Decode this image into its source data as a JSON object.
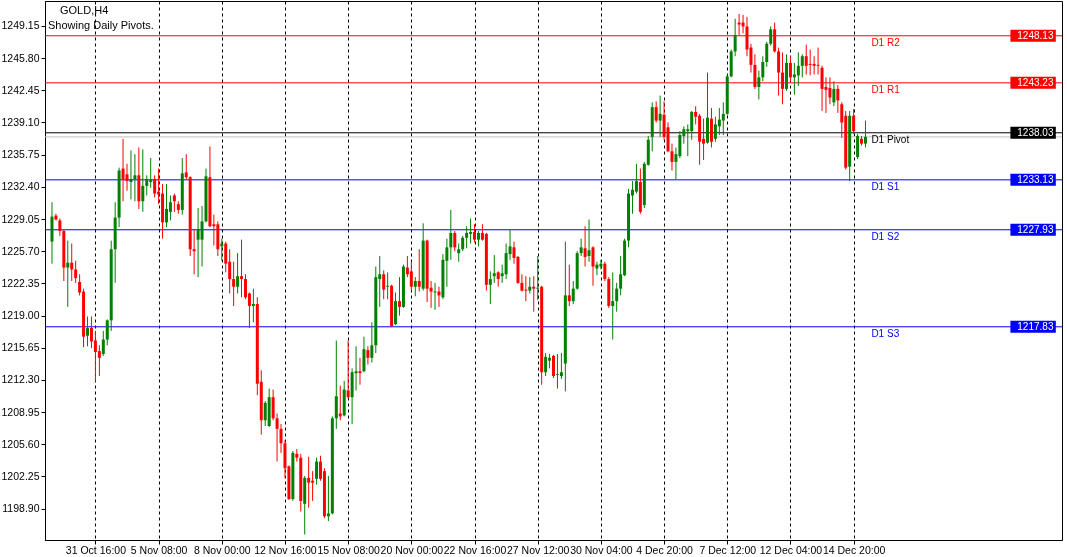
{
  "chart_data": {
    "type": "candlestick",
    "title": "GOLD,H4",
    "subtitle": "Showing Daily Pivots.",
    "categories": [
      null,
      null,
      null,
      null,
      null,
      null,
      null,
      null,
      null,
      null,
      null,
      "31 Oct 16:00",
      null,
      null,
      null,
      null,
      null,
      null,
      null,
      null,
      null,
      null,
      null,
      null,
      null,
      null,
      null,
      "5 Nov 08:00",
      null,
      null,
      null,
      null,
      null,
      null,
      null,
      null,
      null,
      null,
      null,
      null,
      null,
      null,
      null,
      "8 Nov 00:00",
      null,
      null,
      null,
      null,
      null,
      null,
      null,
      null,
      null,
      null,
      null,
      null,
      null,
      null,
      null,
      "12 Nov 16:00",
      null,
      null,
      null,
      null,
      null,
      null,
      null,
      null,
      null,
      null,
      null,
      null,
      null,
      null,
      null,
      "15 Nov 08:00",
      null,
      null,
      null,
      null,
      null,
      null,
      null,
      null,
      null,
      null,
      null,
      null,
      null,
      null,
      null,
      "20 Nov 00:00",
      null,
      null,
      null,
      null,
      null,
      null,
      null,
      null,
      null,
      null,
      null,
      null,
      null,
      null,
      null,
      "22 Nov 16:00",
      null,
      null,
      null,
      null,
      null,
      null,
      null,
      null,
      null,
      null,
      null,
      null,
      null,
      null,
      null,
      "27 Nov 12:00",
      null,
      null,
      null,
      null,
      null,
      null,
      null,
      null,
      null,
      null,
      null,
      null,
      null,
      null,
      null,
      "30 Nov 04:00",
      null,
      null,
      null,
      null,
      null,
      null,
      null,
      null,
      null,
      null,
      null,
      null,
      null,
      null,
      null,
      "4 Dec 20:00",
      null,
      null,
      null,
      null,
      null,
      null,
      null,
      null,
      null,
      null,
      null,
      null,
      null,
      null,
      null,
      "7 Dec 12:00",
      null,
      null,
      null,
      null,
      null,
      null,
      null,
      null,
      null,
      null,
      null,
      null,
      null,
      null,
      null,
      "12 Dec 04:00",
      null,
      null,
      null,
      null,
      null,
      null,
      null,
      null,
      null,
      null,
      null,
      null,
      null,
      null,
      null,
      "14 Dec 20:00",
      null,
      null,
      null
    ],
    "ohlc": [
      [
        1226.7,
        1230.8,
        1224.4,
        1229.3
      ],
      [
        1229.4,
        1229.6,
        1228.9,
        1229.0
      ],
      [
        1228.9,
        1229.1,
        1227.3,
        1227.8
      ],
      [
        1227.8,
        1227.9,
        1222.6,
        1224.0
      ],
      [
        1224.0,
        1226.8,
        1219.9,
        1224.5
      ],
      [
        1224.5,
        1226.5,
        1222.6,
        1223.8
      ],
      [
        1223.8,
        1224.7,
        1222.4,
        1222.9
      ],
      [
        1222.5,
        1223.3,
        1221.1,
        1221.4
      ],
      [
        1221.5,
        1221.8,
        1215.7,
        1216.8
      ],
      [
        1216.9,
        1218.9,
        1215.8,
        1217.7
      ],
      [
        1217.7,
        1218.9,
        1215.6,
        1216.3
      ],
      [
        1216.4,
        1217.4,
        1212.1,
        1215.2
      ],
      [
        1215.3,
        1215.9,
        1212.7,
        1214.6
      ],
      [
        1215.0,
        1217.4,
        1214.8,
        1216.5
      ],
      [
        1216.5,
        1218.6,
        1215.9,
        1218.5
      ],
      [
        1218.5,
        1226.8,
        1217.4,
        1225.9
      ],
      [
        1225.9,
        1230.8,
        1222.4,
        1229.2
      ],
      [
        1229.2,
        1234.4,
        1228.2,
        1234.1
      ],
      [
        1234.3,
        1237.4,
        1230.9,
        1233.2
      ],
      [
        1233.7,
        1234.8,
        1232.0,
        1233.0
      ],
      [
        1232.9,
        1236.2,
        1231.1,
        1233.2
      ],
      [
        1233.2,
        1235.8,
        1230.9,
        1233.6
      ],
      [
        1233.6,
        1236.5,
        1230.1,
        1230.9
      ],
      [
        1230.9,
        1236.3,
        1229.8,
        1232.5
      ],
      [
        1232.5,
        1233.6,
        1231.5,
        1233.2
      ],
      [
        1232.9,
        1235.4,
        1232.3,
        1233.1
      ],
      [
        1233.2,
        1233.6,
        1231.3,
        1231.7
      ],
      [
        1231.9,
        1234.3,
        1230.6,
        1231.6
      ],
      [
        1231.7,
        1232.7,
        1227.0,
        1228.7
      ],
      [
        1228.7,
        1232.7,
        1228.2,
        1230.1
      ],
      [
        1229.8,
        1231.5,
        1228.9,
        1230.8
      ],
      [
        1231.5,
        1231.7,
        1229.8,
        1230.9
      ],
      [
        1230.6,
        1230.9,
        1229.6,
        1230.0
      ],
      [
        1230.0,
        1235.4,
        1229.5,
        1233.8
      ],
      [
        1233.9,
        1235.8,
        1233.2,
        1233.4
      ],
      [
        1233.4,
        1233.5,
        1225.2,
        1225.9
      ],
      [
        1225.9,
        1228.0,
        1223.3,
        1225.7
      ],
      [
        1226.9,
        1230.2,
        1223.0,
        1228.0
      ],
      [
        1226.9,
        1230.4,
        1224.1,
        1228.8
      ],
      [
        1228.8,
        1234.3,
        1228.7,
        1233.5
      ],
      [
        1233.4,
        1236.6,
        1228.2,
        1228.3
      ],
      [
        1228.5,
        1229.5,
        1226.3,
        1228.3
      ],
      [
        1228.5,
        1228.8,
        1225.2,
        1225.9
      ],
      [
        1226.2,
        1227.0,
        1224.7,
        1226.5
      ],
      [
        1226.5,
        1226.7,
        1223.5,
        1224.4
      ],
      [
        1224.6,
        1225.9,
        1221.3,
        1222.8
      ],
      [
        1222.8,
        1224.6,
        1220.0,
        1222.0
      ],
      [
        1222.0,
        1225.5,
        1221.3,
        1223.1
      ],
      [
        1223.1,
        1226.9,
        1220.9,
        1222.8
      ],
      [
        1222.8,
        1223.3,
        1220.7,
        1220.9
      ],
      [
        1221.3,
        1221.4,
        1217.7,
        1220.0
      ],
      [
        1220.0,
        1221.8,
        1218.3,
        1220.2
      ],
      [
        1220.2,
        1220.9,
        1210.7,
        1211.9
      ],
      [
        1212.1,
        1213.3,
        1206.6,
        1208.1
      ],
      [
        1208.1,
        1210.1,
        1207.5,
        1209.9
      ],
      [
        1207.5,
        1211.4,
        1207.4,
        1210.5
      ],
      [
        1210.5,
        1211.3,
        1208.1,
        1208.3
      ],
      [
        1208.3,
        1208.8,
        1203.8,
        1207.2
      ],
      [
        1207.2,
        1207.7,
        1204.7,
        1205.7
      ],
      [
        1205.7,
        1206.0,
        1202.1,
        1203.1
      ],
      [
        1203.3,
        1203.4,
        1199.8,
        1199.9
      ],
      [
        1199.9,
        1204.9,
        1199.7,
        1204.7
      ],
      [
        1204.6,
        1205.1,
        1203.8,
        1204.2
      ],
      [
        1204.2,
        1204.6,
        1198.6,
        1199.7
      ],
      [
        1199.4,
        1202.3,
        1196.2,
        1202.1
      ],
      [
        1202.1,
        1204.3,
        1199.0,
        1201.6
      ],
      [
        1201.8,
        1202.8,
        1199.7,
        1201.6
      ],
      [
        1202.0,
        1204.2,
        1201.4,
        1203.8
      ],
      [
        1203.8,
        1204.4,
        1201.8,
        1202.0
      ],
      [
        1202.8,
        1203.1,
        1197.9,
        1198.1
      ],
      [
        1198.1,
        1202.3,
        1197.6,
        1198.4
      ],
      [
        1198.4,
        1208.5,
        1198.3,
        1208.3
      ],
      [
        1208.3,
        1216.4,
        1207.2,
        1210.6
      ],
      [
        1208.8,
        1211.7,
        1208.1,
        1208.5
      ],
      [
        1208.6,
        1212.2,
        1208.5,
        1211.3
      ],
      [
        1211.2,
        1216.4,
        1210.4,
        1210.5
      ],
      [
        1210.5,
        1213.5,
        1207.7,
        1213.1
      ],
      [
        1213.0,
        1215.8,
        1211.2,
        1213.2
      ],
      [
        1213.2,
        1214.6,
        1211.8,
        1213.0
      ],
      [
        1213.2,
        1216.8,
        1213.1,
        1215.5
      ],
      [
        1215.4,
        1215.8,
        1213.9,
        1214.6
      ],
      [
        1214.6,
        1218.3,
        1214.1,
        1215.9
      ],
      [
        1215.9,
        1224.1,
        1215.1,
        1223.0
      ],
      [
        1222.8,
        1225.2,
        1219.9,
        1223.3
      ],
      [
        1223.3,
        1223.7,
        1220.7,
        1221.7
      ],
      [
        1222.0,
        1223.5,
        1220.7,
        1222.1
      ],
      [
        1222.1,
        1222.2,
        1217.8,
        1217.9
      ],
      [
        1218.1,
        1221.4,
        1218.0,
        1220.5
      ],
      [
        1220.5,
        1223.0,
        1219.0,
        1219.9
      ],
      [
        1219.9,
        1224.3,
        1219.8,
        1224.1
      ],
      [
        1224.0,
        1225.2,
        1223.0,
        1223.3
      ],
      [
        1223.6,
        1224.6,
        1221.6,
        1222.0
      ],
      [
        1222.0,
        1223.0,
        1221.0,
        1222.6
      ],
      [
        1222.6,
        1225.9,
        1221.5,
        1222.0
      ],
      [
        1221.8,
        1228.6,
        1221.6,
        1226.8
      ],
      [
        1226.8,
        1226.9,
        1220.4,
        1221.8
      ],
      [
        1221.9,
        1222.6,
        1219.8,
        1221.5
      ],
      [
        1221.4,
        1222.4,
        1219.6,
        1221.5
      ],
      [
        1221.5,
        1222.0,
        1219.9,
        1221.1
      ],
      [
        1220.9,
        1225.4,
        1220.7,
        1224.8
      ],
      [
        1224.7,
        1227.0,
        1222.0,
        1226.1
      ],
      [
        1226.1,
        1230.0,
        1224.8,
        1227.6
      ],
      [
        1227.6,
        1227.8,
        1225.7,
        1226.1
      ],
      [
        1225.5,
        1226.5,
        1224.6,
        1225.9
      ],
      [
        1225.9,
        1227.3,
        1225.7,
        1227.1
      ],
      [
        1227.1,
        1228.3,
        1226.0,
        1227.6
      ],
      [
        1227.5,
        1229.1,
        1226.5,
        1227.7
      ],
      [
        1227.7,
        1228.5,
        1226.6,
        1226.9
      ],
      [
        1226.9,
        1227.8,
        1226.2,
        1227.6
      ],
      [
        1227.6,
        1228.5,
        1226.8,
        1226.9
      ],
      [
        1227.5,
        1227.6,
        1221.6,
        1222.2
      ],
      [
        1222.2,
        1223.6,
        1220.2,
        1222.8
      ],
      [
        1223.1,
        1225.3,
        1222.4,
        1223.4
      ],
      [
        1223.5,
        1223.6,
        1222.0,
        1222.8
      ],
      [
        1223.1,
        1224.3,
        1222.4,
        1223.4
      ],
      [
        1223.3,
        1226.5,
        1222.8,
        1225.5
      ],
      [
        1225.4,
        1227.9,
        1224.8,
        1226.2
      ],
      [
        1226.1,
        1226.7,
        1224.4,
        1225.0
      ],
      [
        1225.1,
        1225.2,
        1222.3,
        1222.4
      ],
      [
        1222.4,
        1223.3,
        1221.5,
        1221.6
      ],
      [
        1221.7,
        1223.1,
        1220.5,
        1221.6
      ],
      [
        1221.6,
        1223.0,
        1221.3,
        1222.0
      ],
      [
        1222.0,
        1223.1,
        1219.4,
        1221.8
      ],
      [
        1221.8,
        1225.2,
        1220.6,
        1221.9
      ],
      [
        1222.0,
        1222.1,
        1211.8,
        1213.1
      ],
      [
        1213.1,
        1215.1,
        1212.7,
        1214.7
      ],
      [
        1214.3,
        1215.0,
        1213.5,
        1214.6
      ],
      [
        1214.8,
        1214.9,
        1212.5,
        1212.7
      ],
      [
        1212.8,
        1215.0,
        1211.4,
        1212.9
      ],
      [
        1212.7,
        1215.1,
        1212.4,
        1213.1
      ],
      [
        1214.0,
        1226.7,
        1211.1,
        1221.1
      ],
      [
        1221.1,
        1224.3,
        1220.0,
        1220.5
      ],
      [
        1220.5,
        1222.6,
        1220.2,
        1221.8
      ],
      [
        1221.8,
        1225.7,
        1221.7,
        1225.5
      ],
      [
        1225.5,
        1227.0,
        1225.2,
        1226.1
      ],
      [
        1226.0,
        1228.3,
        1224.1,
        1225.1
      ],
      [
        1225.2,
        1229.0,
        1224.6,
        1225.8
      ],
      [
        1226.1,
        1226.2,
        1222.1,
        1224.1
      ],
      [
        1223.9,
        1224.6,
        1223.2,
        1224.3
      ],
      [
        1224.1,
        1224.8,
        1223.8,
        1224.4
      ],
      [
        1224.4,
        1224.6,
        1222.6,
        1222.8
      ],
      [
        1222.8,
        1223.0,
        1219.8,
        1220.0
      ],
      [
        1220.0,
        1223.5,
        1216.5,
        1220.5
      ],
      [
        1220.5,
        1222.4,
        1219.4,
        1221.8
      ],
      [
        1221.8,
        1225.2,
        1221.1,
        1223.3
      ],
      [
        1223.2,
        1227.0,
        1223.1,
        1226.8
      ],
      [
        1226.8,
        1232.2,
        1226.1,
        1231.7
      ],
      [
        1231.5,
        1233.0,
        1229.6,
        1232.1
      ],
      [
        1231.9,
        1234.8,
        1231.7,
        1233.0
      ],
      [
        1232.9,
        1234.3,
        1229.6,
        1229.8
      ],
      [
        1230.5,
        1235.0,
        1230.2,
        1234.8
      ],
      [
        1234.7,
        1237.7,
        1234.6,
        1237.3
      ],
      [
        1237.6,
        1241.2,
        1236.1,
        1240.7
      ],
      [
        1240.7,
        1241.3,
        1239.1,
        1239.3
      ],
      [
        1239.3,
        1241.9,
        1237.6,
        1240.0
      ],
      [
        1239.9,
        1241.3,
        1237.3,
        1237.6
      ],
      [
        1238.6,
        1239.1,
        1236.0,
        1236.1
      ],
      [
        1236.1,
        1236.9,
        1234.1,
        1235.0
      ],
      [
        1235.0,
        1236.5,
        1233.2,
        1235.8
      ],
      [
        1235.6,
        1238.2,
        1235.4,
        1237.8
      ],
      [
        1237.7,
        1238.7,
        1236.9,
        1238.4
      ],
      [
        1238.2,
        1238.9,
        1235.6,
        1238.4
      ],
      [
        1238.2,
        1240.3,
        1237.3,
        1240.2
      ],
      [
        1240.2,
        1240.8,
        1238.9,
        1239.7
      ],
      [
        1239.8,
        1240.0,
        1234.7,
        1237.1
      ],
      [
        1237.4,
        1239.5,
        1235.2,
        1236.9
      ],
      [
        1237.0,
        1244.3,
        1236.9,
        1239.6
      ],
      [
        1239.5,
        1240.6,
        1236.5,
        1237.1
      ],
      [
        1237.4,
        1239.7,
        1237.1,
        1238.9
      ],
      [
        1238.7,
        1240.6,
        1237.8,
        1239.4
      ],
      [
        1239.3,
        1241.2,
        1237.8,
        1240.0
      ],
      [
        1240.0,
        1244.1,
        1239.9,
        1243.9
      ],
      [
        1243.9,
        1246.7,
        1243.8,
        1246.5
      ],
      [
        1246.5,
        1249.9,
        1246.0,
        1248.2
      ],
      [
        1249.5,
        1250.4,
        1248.2,
        1249.3
      ],
      [
        1249.5,
        1250.3,
        1248.4,
        1249.1
      ],
      [
        1249.1,
        1250.1,
        1246.0,
        1246.7
      ],
      [
        1246.9,
        1247.3,
        1244.3,
        1245.1
      ],
      [
        1245.1,
        1246.2,
        1242.6,
        1242.8
      ],
      [
        1242.8,
        1244.5,
        1241.5,
        1243.8
      ],
      [
        1243.8,
        1246.0,
        1243.4,
        1245.4
      ],
      [
        1245.4,
        1247.5,
        1244.9,
        1247.3
      ],
      [
        1247.3,
        1249.1,
        1247.1,
        1248.8
      ],
      [
        1248.8,
        1249.5,
        1246.4,
        1246.5
      ],
      [
        1246.5,
        1246.9,
        1241.9,
        1244.3
      ],
      [
        1244.3,
        1246.4,
        1241.0,
        1242.6
      ],
      [
        1242.6,
        1246.2,
        1242.4,
        1245.3
      ],
      [
        1245.3,
        1246.0,
        1243.4,
        1243.8
      ],
      [
        1243.8,
        1245.3,
        1242.0,
        1244.1
      ],
      [
        1244.0,
        1246.4,
        1242.9,
        1245.0
      ],
      [
        1245.0,
        1246.2,
        1243.8,
        1246.0
      ],
      [
        1246.0,
        1247.2,
        1244.1,
        1245.0
      ],
      [
        1245.2,
        1246.7,
        1244.0,
        1245.1
      ],
      [
        1245.2,
        1246.0,
        1244.1,
        1245.0
      ],
      [
        1245.1,
        1246.9,
        1244.1,
        1245.0
      ],
      [
        1244.8,
        1245.0,
        1240.3,
        1242.6
      ],
      [
        1242.8,
        1243.8,
        1240.1,
        1242.5
      ],
      [
        1242.7,
        1243.8,
        1241.0,
        1241.7
      ],
      [
        1241.2,
        1243.4,
        1240.8,
        1242.6
      ],
      [
        1242.6,
        1243.0,
        1240.1,
        1241.4
      ],
      [
        1241.0,
        1241.2,
        1237.5,
        1239.1
      ],
      [
        1239.8,
        1240.3,
        1234.2,
        1234.4
      ],
      [
        1234.5,
        1240.3,
        1233.0,
        1239.8
      ],
      [
        1239.8,
        1240.5,
        1237.9,
        1238.2
      ],
      [
        1235.5,
        1237.9,
        1235.3,
        1237.7
      ],
      [
        1237.4,
        1237.7,
        1236.7,
        1236.9
      ],
      [
        1236.9,
        1239.3,
        1236.5,
        1237.6
      ]
    ],
    "colors": [
      "#008000",
      "#ff0000",
      "#ff0000",
      "#ff0000",
      "#008000",
      "#ff0000",
      "#ff0000",
      "#ff0000",
      "#ff0000",
      "#008000",
      "#ff0000",
      "#ff0000",
      "#ff0000",
      "#008000",
      "#008000",
      "#008000",
      "#008000",
      "#008000",
      "#ff0000",
      "#ff0000",
      "#008000",
      "#008000",
      "#ff0000",
      "#008000",
      "#008000",
      "#008000",
      "#ff0000",
      "#ff0000",
      "#ff0000",
      "#008000",
      "#008000",
      "#ff0000",
      "#ff0000",
      "#008000",
      "#ff0000",
      "#ff0000",
      "#ff0000",
      "#008000",
      "#008000",
      "#008000",
      "#ff0000",
      "#ff0000",
      "#ff0000",
      "#008000",
      "#ff0000",
      "#ff0000",
      "#ff0000",
      "#008000",
      "#ff0000",
      "#ff0000",
      "#ff0000",
      "#008000",
      "#ff0000",
      "#ff0000",
      "#008000",
      "#008000",
      "#ff0000",
      "#ff0000",
      "#ff0000",
      "#ff0000",
      "#ff0000",
      "#008000",
      "#ff0000",
      "#ff0000",
      "#008000",
      "#ff0000",
      "#ff0000",
      "#008000",
      "#ff0000",
      "#ff0000",
      "#008000",
      "#008000",
      "#008000",
      "#ff0000",
      "#008000",
      "#ff0000",
      "#008000",
      "#008000",
      "#ff0000",
      "#008000",
      "#ff0000",
      "#008000",
      "#008000",
      "#008000",
      "#ff0000",
      "#008000",
      "#ff0000",
      "#008000",
      "#ff0000",
      "#008000",
      "#ff0000",
      "#ff0000",
      "#008000",
      "#ff0000",
      "#008000",
      "#ff0000",
      "#ff0000",
      "#008000",
      "#ff0000",
      "#008000",
      "#008000",
      "#008000",
      "#ff0000",
      "#008000",
      "#008000",
      "#008000",
      "#008000",
      "#ff0000",
      "#008000",
      "#ff0000",
      "#ff0000",
      "#008000",
      "#008000",
      "#ff0000",
      "#008000",
      "#008000",
      "#008000",
      "#ff0000",
      "#ff0000",
      "#ff0000",
      "#ff0000",
      "#008000",
      "#ff0000",
      "#008000",
      "#ff0000",
      "#008000",
      "#008000",
      "#ff0000",
      "#008000",
      "#008000",
      "#008000",
      "#ff0000",
      "#008000",
      "#008000",
      "#008000",
      "#ff0000",
      "#008000",
      "#ff0000",
      "#008000",
      "#008000",
      "#ff0000",
      "#ff0000",
      "#008000",
      "#008000",
      "#008000",
      "#008000",
      "#008000",
      "#008000",
      "#008000",
      "#ff0000",
      "#008000",
      "#008000",
      "#008000",
      "#ff0000",
      "#008000",
      "#ff0000",
      "#ff0000",
      "#ff0000",
      "#008000",
      "#008000",
      "#008000",
      "#008000",
      "#008000",
      "#ff0000",
      "#ff0000",
      "#ff0000",
      "#008000",
      "#ff0000",
      "#008000",
      "#008000",
      "#008000",
      "#008000",
      "#008000",
      "#008000",
      "#ff0000",
      "#ff0000",
      "#ff0000",
      "#ff0000",
      "#ff0000",
      "#008000",
      "#008000",
      "#008000",
      "#008000",
      "#ff0000",
      "#ff0000",
      "#ff0000",
      "#008000",
      "#ff0000",
      "#008000",
      "#008000",
      "#008000",
      "#ff0000",
      "#ff0000",
      "#ff0000",
      "#ff0000",
      "#ff0000",
      "#ff0000",
      "#ff0000",
      "#008000",
      "#ff0000",
      "#ff0000",
      "#ff0000",
      "#008000",
      "#ff0000",
      "#008000",
      "#ff0000",
      "#008000"
    ],
    "ylim": [
      1195.63,
      1251.75
    ],
    "yticks": [
      {
        "value": 1249.15,
        "label": "1249.15"
      },
      {
        "value": 1245.8,
        "label": "1245.80"
      },
      {
        "value": 1242.45,
        "label": "1242.45"
      },
      {
        "value": 1239.1,
        "label": "1239.10"
      },
      {
        "value": 1235.75,
        "label": "1235.75"
      },
      {
        "value": 1232.4,
        "label": "1232.40"
      },
      {
        "value": 1229.05,
        "label": "1229.05"
      },
      {
        "value": 1225.7,
        "label": "1225.70"
      },
      {
        "value": 1222.35,
        "label": "1222.35"
      },
      {
        "value": 1219,
        "label": "1219.00"
      },
      {
        "value": 1215.65,
        "label": "1215.65"
      },
      {
        "value": 1212.3,
        "label": "1212.30"
      },
      {
        "value": 1208.95,
        "label": "1208.95"
      },
      {
        "value": 1205.6,
        "label": "1205.60"
      },
      {
        "value": 1202.25,
        "label": "1202.25"
      },
      {
        "value": 1198.9,
        "label": "1198.90"
      }
    ],
    "ref_lines": [
      {
        "axis": "y",
        "value": 1248.13,
        "label": "D1 R2",
        "color": "#ff0000"
      },
      {
        "axis": "y",
        "value": 1243.23,
        "label": "D1 R1",
        "color": "#ff0000"
      },
      {
        "axis": "y",
        "value": 1238.03,
        "label": "D1 Pivot",
        "color": "#000000"
      },
      {
        "axis": "y",
        "value": 1237.6,
        "color": "#c0c0c0"
      },
      {
        "axis": "y",
        "value": 1233.13,
        "label": "D1 S1",
        "color": "#0000ff"
      },
      {
        "axis": "y",
        "value": 1227.93,
        "label": "D1 S2",
        "color": "#0000ff"
      },
      {
        "axis": "y",
        "value": 1217.83,
        "label": "D1 S3",
        "color": "#0000ff"
      }
    ],
    "annotations": [
      {
        "text": "1248.13",
        "y": 1248.13
      },
      {
        "text": "1243.23",
        "y": 1243.23
      },
      {
        "text": "1238.03",
        "y": 1238.03
      },
      {
        "text": "1233.13",
        "y": 1233.13
      },
      {
        "text": "1227.93",
        "y": 1227.93
      },
      {
        "text": "1217.83",
        "y": 1217.83
      }
    ],
    "grid": "x"
  }
}
